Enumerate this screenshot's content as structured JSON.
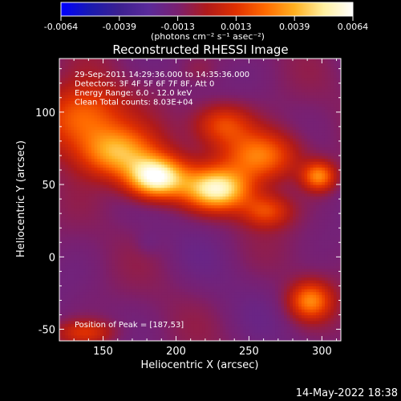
{
  "chart_data": {
    "type": "heatmap",
    "title": "Reconstructed RHESSI Image",
    "xlabel": "Heliocentric X (arcsec)",
    "ylabel": "Heliocentric Y (arcsec)",
    "xlim": [
      120,
      313
    ],
    "ylim": [
      -58,
      137
    ],
    "xticks": [
      150,
      200,
      250,
      300
    ],
    "yticks": [
      -50,
      0,
      50,
      100
    ],
    "colorbar": {
      "min": -0.0064,
      "max": 0.0064,
      "ticks": [
        "-0.0064",
        "-0.0039",
        "-0.0013",
        "0.0013",
        "0.0039",
        "0.0064"
      ],
      "units": "(photons cm⁻² s⁻¹ asec⁻²)",
      "colormap": [
        "#0000ff",
        "#1a1ab0",
        "#3c2090",
        "#5a2a9a",
        "#7a2070",
        "#b01a1a",
        "#e03000",
        "#ff6a00",
        "#ffb020",
        "#fff0a0",
        "#ffffff"
      ]
    },
    "annotations": [
      "29-Sep-2011 14:29:36.000 to 14:35:36.000",
      "Detectors: 3F 4F 5F 6F 7F 8F, Att 0",
      "Energy Range: 6.0 - 12.0 keV",
      "Clean     Total counts: 8.03E+04"
    ],
    "peak_label": "Position of Peak = [187,53]",
    "peak": [
      187,
      53
    ],
    "sources": [
      {
        "x": 186,
        "y": 55,
        "peak": 0.0064,
        "sx": 14,
        "sy": 10
      },
      {
        "x": 228,
        "y": 47,
        "peak": 0.0052,
        "sx": 16,
        "sy": 10
      },
      {
        "x": 160,
        "y": 72,
        "peak": 0.0036,
        "sx": 18,
        "sy": 12
      },
      {
        "x": 135,
        "y": 96,
        "peak": 0.0028,
        "sx": 20,
        "sy": 16
      },
      {
        "x": 258,
        "y": 70,
        "peak": 0.003,
        "sx": 18,
        "sy": 12
      },
      {
        "x": 232,
        "y": 92,
        "peak": 0.0018,
        "sx": 14,
        "sy": 10
      },
      {
        "x": 298,
        "y": 56,
        "peak": 0.003,
        "sx": 8,
        "sy": 7
      },
      {
        "x": 292,
        "y": -30,
        "peak": 0.0028,
        "sx": 10,
        "sy": 9
      },
      {
        "x": 138,
        "y": -52,
        "peak": 0.0012,
        "sx": 14,
        "sy": 6
      },
      {
        "x": 262,
        "y": 32,
        "peak": 0.0016,
        "sx": 12,
        "sy": 8
      }
    ],
    "background": -0.0013,
    "minima": [
      {
        "x": 181,
        "y": 10,
        "peak": -0.0018,
        "sx": 6,
        "sy": 6
      },
      {
        "x": 216,
        "y": 130,
        "peak": -0.0008,
        "sx": 8,
        "sy": 6
      }
    ]
  },
  "footer": {
    "timestamp": "14-May-2022 18:38"
  }
}
